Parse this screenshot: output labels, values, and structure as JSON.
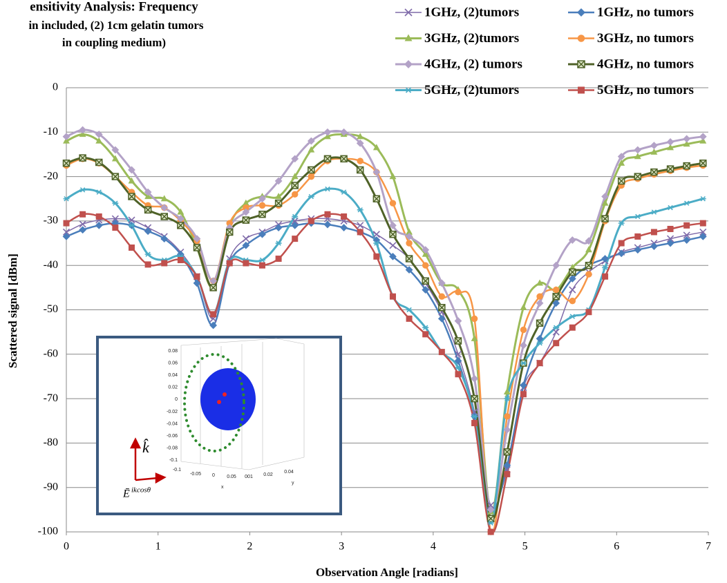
{
  "chart_data": {
    "type": "line",
    "title_lines": [
      "ensitivity Analysis:  Frequency",
      "in included, (2) 1cm gelatin tumors",
      "in coupling medium)"
    ],
    "xlabel": "Observation Angle [radians]",
    "ylabel": "Scattered signal [dBm]",
    "xlim": [
      0,
      7
    ],
    "ylim": [
      -100,
      0
    ],
    "xticks": [
      0,
      1,
      2,
      3,
      4,
      5,
      6,
      7
    ],
    "yticks": [
      0,
      -10,
      -20,
      -30,
      -40,
      -50,
      -60,
      -70,
      -80,
      -90,
      -100
    ],
    "grid": true,
    "legend": "upper right",
    "x": [
      0,
      0.178,
      0.356,
      0.534,
      0.712,
      0.89,
      1.068,
      1.246,
      1.424,
      1.602,
      1.78,
      1.958,
      2.136,
      2.314,
      2.492,
      2.67,
      2.848,
      3.026,
      3.204,
      3.382,
      3.56,
      3.738,
      3.916,
      4.094,
      4.272,
      4.45,
      4.628,
      4.806,
      4.984,
      5.162,
      5.34,
      5.518,
      5.696,
      5.874,
      6.052,
      6.23,
      6.408,
      6.586,
      6.764,
      6.942
    ],
    "series": [
      {
        "name": "1GHz, (2)tumors",
        "color": "#7f6aa9",
        "marker": "x",
        "width": 1.5,
        "values": [
          -32.5,
          -30.7,
          -29.8,
          -29.5,
          -29.8,
          -31.5,
          -33.5,
          -37,
          -42.5,
          -52,
          -38.5,
          -34,
          -32.5,
          -30.8,
          -30,
          -29.5,
          -29.5,
          -30,
          -31,
          -33,
          -35.5,
          -38.5,
          -44,
          -50.5,
          -60,
          -73,
          -94,
          -86,
          -67.5,
          -62,
          -55,
          -45.5,
          -41.5,
          -39,
          -37,
          -36,
          -35,
          -34,
          -33.2,
          -32.5
        ]
      },
      {
        "name": "1GHz, no tumors",
        "color": "#4a7ebb",
        "marker": "diamond",
        "width": 2.5,
        "values": [
          -33.5,
          -32,
          -31,
          -30.5,
          -31,
          -32.3,
          -34,
          -37.5,
          -44,
          -53.5,
          -39.5,
          -35.5,
          -33,
          -31.5,
          -31,
          -30.5,
          -30.8,
          -31.5,
          -32.5,
          -34.3,
          -38,
          -41,
          -45.5,
          -52,
          -61.5,
          -74,
          -95,
          -85,
          -67,
          -56.5,
          -48.5,
          -43,
          -40,
          -38.5,
          -37.3,
          -36.5,
          -35.7,
          -35,
          -34.3,
          -33.5
        ]
      },
      {
        "name": "3GHz, (2)tumors",
        "color": "#9bbb59",
        "marker": "triangle",
        "width": 3,
        "values": [
          -12,
          -10.5,
          -12,
          -16,
          -21,
          -24.5,
          -25,
          -28,
          -36,
          -45,
          -31,
          -26,
          -24.5,
          -24.5,
          -20,
          -14,
          -11,
          -10.5,
          -11,
          -13.5,
          -20,
          -32.5,
          -37.5,
          -44,
          -45.5,
          -56.5,
          -95.5,
          -68.5,
          -49.5,
          -44,
          -45.5,
          -40.5,
          -36.5,
          -26,
          -17,
          -15.5,
          -14.5,
          -13.5,
          -12.7,
          -12
        ]
      },
      {
        "name": "3GHz, no tumors",
        "color": "#f79646",
        "marker": "circle",
        "width": 2.5,
        "values": [
          -17.5,
          -16,
          -17,
          -20,
          -23.5,
          -26.5,
          -27,
          -30,
          -34.5,
          -43.5,
          -30.5,
          -27,
          -26.5,
          -26.5,
          -24,
          -20,
          -16.5,
          -16,
          -16.5,
          -19,
          -26,
          -35,
          -40,
          -47,
          -46,
          -52,
          -100,
          -74,
          -54.5,
          -47,
          -45.5,
          -48,
          -42,
          -30,
          -22,
          -20.5,
          -19.5,
          -18.7,
          -18,
          -17.5
        ]
      },
      {
        "name": "4GHz, (2) tumors",
        "color": "#b3a2c7",
        "marker": "diamond",
        "width": 3,
        "values": [
          -11,
          -9.5,
          -10.5,
          -14,
          -18.5,
          -23.5,
          -27,
          -29.5,
          -34,
          -43.5,
          -31.5,
          -28,
          -25,
          -21,
          -16,
          -12,
          -10,
          -10,
          -12.5,
          -19,
          -31,
          -33.5,
          -36.5,
          -44,
          -52.5,
          -65.5,
          -95,
          -77,
          -58,
          -48.5,
          -40,
          -34.3,
          -34.5,
          -24.5,
          -15.5,
          -14,
          -13,
          -12.2,
          -11.5,
          -11
        ]
      },
      {
        "name": "4GHz, no tumors",
        "color": "#4f6228",
        "marker": "square-x",
        "width": 3,
        "values": [
          -17,
          -15.8,
          -16.8,
          -20,
          -24.5,
          -27.5,
          -29,
          -31,
          -36,
          -45,
          -32.5,
          -29.8,
          -28.5,
          -26,
          -22,
          -18.5,
          -16,
          -16,
          -18.5,
          -25,
          -33,
          -38.5,
          -43.5,
          -49.5,
          -57,
          -70,
          -97,
          -82,
          -62,
          -53,
          -47,
          -41.5,
          -40,
          -29.5,
          -21,
          -20,
          -19,
          -18.3,
          -17.6,
          -17
        ]
      },
      {
        "name": "5GHz, (2)tumors",
        "color": "#4bacc6",
        "marker": "star",
        "width": 3,
        "values": [
          -25,
          -23,
          -23.5,
          -26,
          -31,
          -37.5,
          -38.8,
          -38,
          -42.5,
          -51,
          -39,
          -38.8,
          -38.8,
          -35,
          -29,
          -24.5,
          -22.8,
          -23.5,
          -27.5,
          -35,
          -47,
          -50,
          -54,
          -59.5,
          -63,
          -74,
          -98,
          -70,
          -62,
          -57.5,
          -54,
          -51.5,
          -50,
          -40.5,
          -30.5,
          -29,
          -28,
          -27,
          -26,
          -25
        ]
      },
      {
        "name": "5GHz, no tumors",
        "color": "#c0504d",
        "marker": "square",
        "width": 2.5,
        "values": [
          -30.5,
          -28.5,
          -29,
          -31.5,
          -36,
          -39.8,
          -39.5,
          -38.8,
          -42.5,
          -51,
          -39.5,
          -39.5,
          -40,
          -38.5,
          -34,
          -30,
          -28.5,
          -29,
          -32.5,
          -38,
          -47,
          -52,
          -55.5,
          -59.5,
          -64.5,
          -75.5,
          -100,
          -87,
          -69,
          -62,
          -57.5,
          -54,
          -50.5,
          -42.5,
          -35,
          -33.5,
          -32.5,
          -31.8,
          -31,
          -30.5
        ]
      }
    ],
    "inset": {
      "yticks": [
        "0.08",
        "0.06",
        "0.04",
        "0.02",
        "0",
        "-0.02",
        "-0.04",
        "-0.06",
        "-0.08",
        "-0.1"
      ],
      "xticks": [
        "-0.1",
        "-0.05",
        "0",
        "0.05",
        "001",
        "0.02",
        "0.04"
      ],
      "xlabel": "x",
      "ylabel": "y",
      "k_label": "k̂",
      "e_label": "Ē",
      "e_sup": "ikcosθ"
    }
  }
}
